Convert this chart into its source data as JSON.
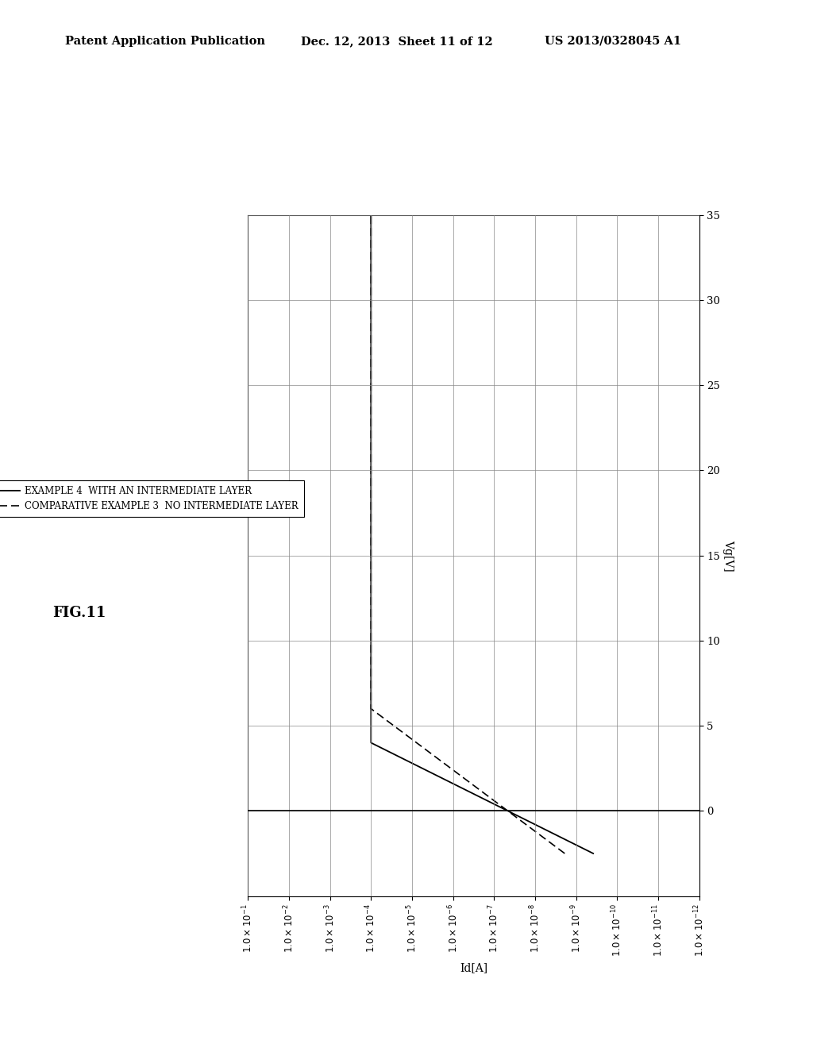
{
  "header_left": "Patent Application Publication",
  "header_mid": "Dec. 12, 2013  Sheet 11 of 12",
  "header_right": "US 2013/0328045 A1",
  "legend_solid": "EXAMPLE 4  WITH AN INTERMEDIATE LAYER",
  "legend_dashed": "COMPARATIVE EXAMPLE 3  NO INTERMEDIATE LAYER",
  "xlabel": "Id[A]",
  "ylabel": "Vg[V]",
  "ylim": [
    -5,
    35
  ],
  "yticks": [
    0,
    5,
    10,
    15,
    20,
    25,
    30,
    35
  ],
  "background_color": "#ffffff",
  "fig_label": "FIG.11",
  "vth_solid": 4.0,
  "S_solid": 1.2,
  "above_thresh_slope_solid": 0.0,
  "vth_dashed": 6.0,
  "S_dashed": 1.8,
  "above_thresh_slope_dashed": 0.0,
  "log_id_at_threshold": -4.0,
  "noise_std": 0.25,
  "noise_threshold_log": -10.5
}
